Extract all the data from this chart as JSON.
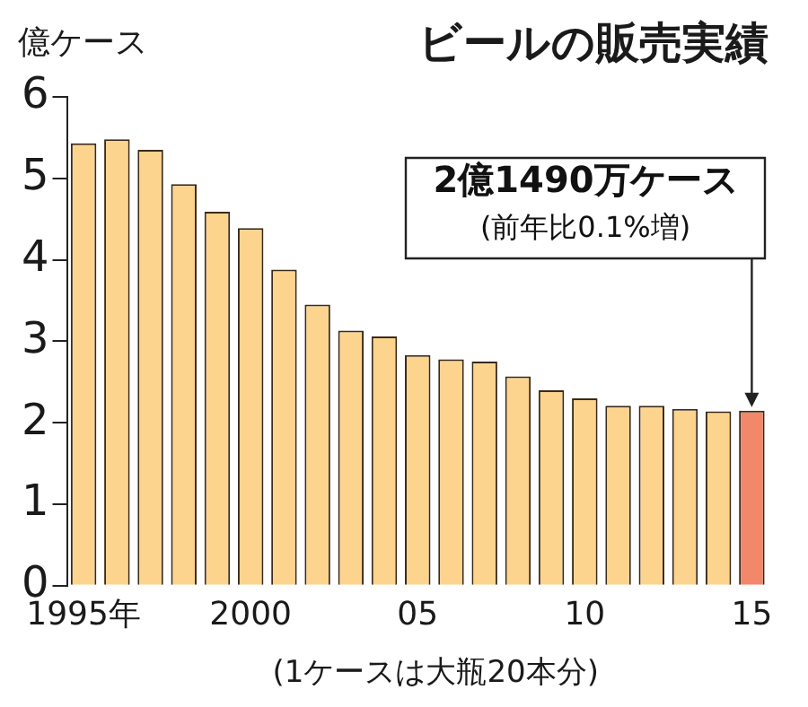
{
  "chart_data": {
    "type": "bar",
    "title": "ビールの販売実績",
    "ylabel": "億ケース",
    "categories": [
      "1995年",
      null,
      null,
      null,
      null,
      "2000",
      null,
      null,
      null,
      null,
      "05",
      null,
      null,
      null,
      null,
      "10",
      null,
      null,
      null,
      null,
      "15"
    ],
    "values": [
      5.43,
      5.48,
      5.35,
      4.93,
      4.59,
      4.39,
      3.88,
      3.45,
      3.13,
      3.06,
      2.83,
      2.78,
      2.75,
      2.57,
      2.4,
      2.3,
      2.21,
      2.21,
      2.17,
      2.14,
      2.149
    ],
    "colors": [
      "#fdd48e",
      "#fdd48e",
      "#fdd48e",
      "#fdd48e",
      "#fdd48e",
      "#fdd48e",
      "#fdd48e",
      "#fdd48e",
      "#fdd48e",
      "#fdd48e",
      "#fdd48e",
      "#fdd48e",
      "#fdd48e",
      "#fdd48e",
      "#fdd48e",
      "#fdd48e",
      "#fdd48e",
      "#fdd48e",
      "#fdd48e",
      "#fdd48e",
      "#f2876a"
    ],
    "ylim": [
      0,
      6
    ],
    "yticks": [
      0,
      1,
      2,
      3,
      4,
      5,
      6
    ],
    "grid": false,
    "legend": false,
    "annotations": [
      "2億1490万ケース",
      "(前年比0.1%増)",
      "(1ケースは大瓶20本分)"
    ]
  }
}
